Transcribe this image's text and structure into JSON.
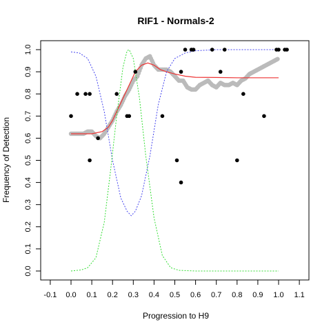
{
  "chart_data": {
    "type": "scatter",
    "title": "RIF1 - Normals-2",
    "xlabel": "Progression to H9",
    "ylabel": "Frequency of Detection",
    "xlim": [
      -0.1,
      1.1
    ],
    "ylim": [
      0.0,
      1.0
    ],
    "xticks": [
      "-0.1",
      "0.0",
      "0.1",
      "0.2",
      "0.3",
      "0.4",
      "0.5",
      "0.6",
      "0.7",
      "0.8",
      "0.9",
      "1.0",
      "1.1"
    ],
    "yticks": [
      "0.0",
      "0.1",
      "0.2",
      "0.3",
      "0.4",
      "0.5",
      "0.6",
      "0.7",
      "0.8",
      "0.9",
      "1.0"
    ],
    "grid": false,
    "legend": "none",
    "colors": {
      "points": "#000000",
      "smoothed": "#bbbbbb",
      "fit": "#ee3333",
      "blue_curve": "#4444ee",
      "green_curve": "#33dd33"
    },
    "series": [
      {
        "kind": "points",
        "x": [
          0.0,
          0.03,
          0.07,
          0.09,
          0.13,
          0.22,
          0.27,
          0.28,
          0.31,
          0.44,
          0.51,
          0.53,
          0.53,
          0.55,
          0.58,
          0.59,
          0.68,
          0.72,
          0.74,
          0.8,
          0.83,
          0.93,
          0.99,
          1.0,
          1.03,
          1.04,
          0.09
        ],
        "y": [
          0.7,
          0.8,
          0.8,
          0.8,
          0.6,
          0.8,
          0.7,
          0.7,
          0.9,
          0.7,
          0.5,
          0.9,
          0.4,
          1.0,
          1.0,
          1.0,
          1.0,
          0.9,
          1.0,
          0.5,
          0.8,
          0.7,
          1.0,
          1.0,
          1.0,
          1.0,
          0.5
        ]
      },
      {
        "kind": "smoothed",
        "x": [
          0.0,
          0.02,
          0.04,
          0.06,
          0.08,
          0.1,
          0.12,
          0.14,
          0.16,
          0.18,
          0.2,
          0.22,
          0.24,
          0.26,
          0.28,
          0.3,
          0.32,
          0.34,
          0.36,
          0.38,
          0.4,
          0.42,
          0.44,
          0.46,
          0.48,
          0.5,
          0.52,
          0.54,
          0.56,
          0.58,
          0.6,
          0.62,
          0.64,
          0.66,
          0.68,
          0.7,
          0.72,
          0.74,
          0.76,
          0.78,
          0.8,
          0.82,
          0.84,
          0.86,
          0.88,
          0.9,
          0.92,
          0.94,
          0.96,
          0.98,
          1.0
        ],
        "y": [
          0.62,
          0.62,
          0.62,
          0.62,
          0.63,
          0.63,
          0.61,
          0.6,
          0.62,
          0.65,
          0.68,
          0.72,
          0.75,
          0.79,
          0.82,
          0.86,
          0.88,
          0.93,
          0.96,
          0.97,
          0.93,
          0.91,
          0.91,
          0.91,
          0.9,
          0.88,
          0.86,
          0.86,
          0.83,
          0.82,
          0.82,
          0.84,
          0.85,
          0.86,
          0.84,
          0.83,
          0.85,
          0.84,
          0.84,
          0.85,
          0.84,
          0.86,
          0.87,
          0.89,
          0.9,
          0.91,
          0.92,
          0.93,
          0.94,
          0.95,
          0.96
        ]
      },
      {
        "kind": "fit",
        "x": [
          0.0,
          0.05,
          0.1,
          0.15,
          0.18,
          0.2,
          0.22,
          0.25,
          0.28,
          0.31,
          0.34,
          0.37,
          0.4,
          0.43,
          0.46,
          0.5,
          0.55,
          0.6,
          0.7,
          0.8,
          0.9,
          1.0
        ],
        "y": [
          0.62,
          0.62,
          0.62,
          0.63,
          0.65,
          0.68,
          0.72,
          0.78,
          0.84,
          0.9,
          0.93,
          0.94,
          0.93,
          0.91,
          0.9,
          0.89,
          0.88,
          0.875,
          0.874,
          0.873,
          0.873,
          0.873
        ]
      },
      {
        "kind": "blue_curve",
        "x": [
          0.0,
          0.04,
          0.08,
          0.12,
          0.16,
          0.2,
          0.24,
          0.27,
          0.29,
          0.31,
          0.34,
          0.38,
          0.42,
          0.46,
          0.5,
          0.55,
          0.6,
          0.7,
          0.8,
          0.9,
          1.0
        ],
        "y": [
          0.99,
          0.985,
          0.96,
          0.88,
          0.72,
          0.5,
          0.33,
          0.27,
          0.25,
          0.27,
          0.34,
          0.52,
          0.75,
          0.9,
          0.96,
          0.985,
          0.995,
          1.0,
          1.0,
          1.0,
          1.0
        ]
      },
      {
        "kind": "green_curve",
        "x": [
          0.0,
          0.05,
          0.08,
          0.12,
          0.16,
          0.19,
          0.22,
          0.25,
          0.27,
          0.28,
          0.3,
          0.33,
          0.36,
          0.4,
          0.44,
          0.48,
          0.52,
          0.6,
          0.8,
          1.0
        ],
        "y": [
          0.0,
          0.005,
          0.015,
          0.06,
          0.22,
          0.45,
          0.7,
          0.92,
          0.995,
          1.0,
          0.96,
          0.78,
          0.52,
          0.24,
          0.07,
          0.015,
          0.003,
          0.0,
          0.0,
          0.0
        ]
      }
    ]
  }
}
